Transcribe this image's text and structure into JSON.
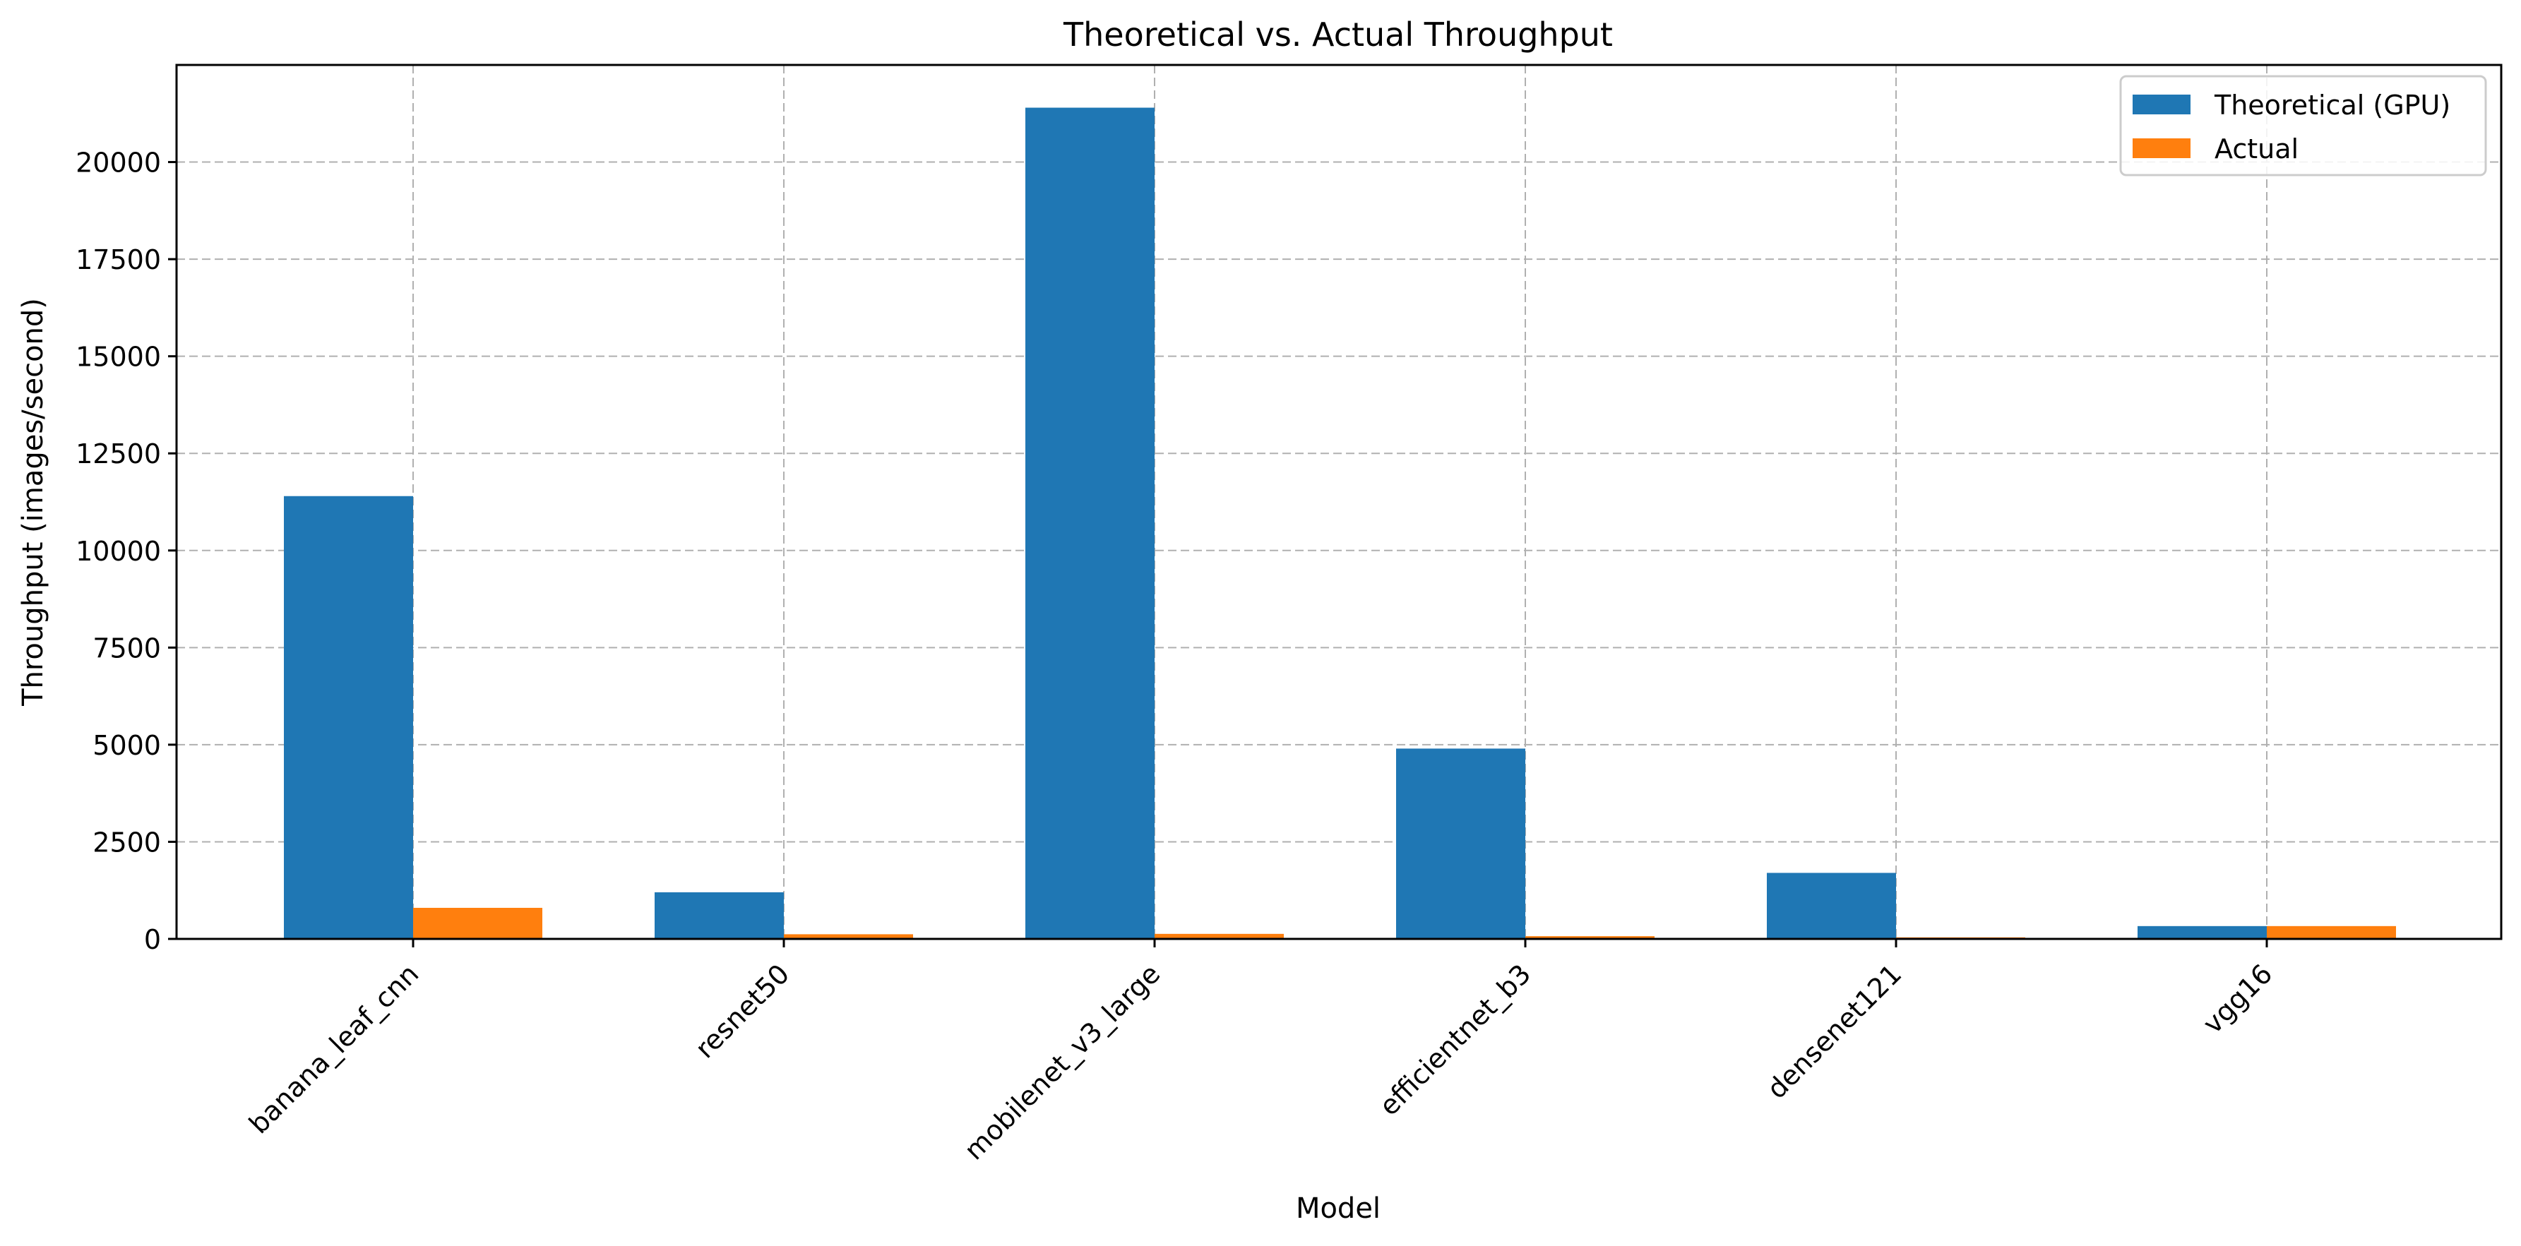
{
  "chart_data": {
    "type": "bar",
    "title": "Theoretical vs. Actual Throughput",
    "xlabel": "Model",
    "ylabel": "Throughput (images/second)",
    "categories": [
      "banana_leaf_cnn",
      "resnet50",
      "mobilenet_v3_large",
      "efficientnet_b3",
      "densenet121",
      "vgg16"
    ],
    "series": [
      {
        "name": "Theoretical (GPU)",
        "color": "#1f77b4",
        "values": [
          11400,
          1200,
          21400,
          4900,
          1700,
          330
        ]
      },
      {
        "name": "Actual",
        "color": "#ff7f0e",
        "values": [
          800,
          120,
          130,
          70,
          40,
          330
        ]
      }
    ],
    "ylim": [
      0,
      22500
    ],
    "yticks": [
      0,
      2500,
      5000,
      7500,
      10000,
      12500,
      15000,
      17500,
      20000
    ],
    "ytick_labels": [
      "0",
      "2500",
      "5000",
      "7500",
      "10000",
      "12500",
      "15000",
      "17500",
      "20000"
    ],
    "grid": true,
    "legend_position": "top-right"
  }
}
